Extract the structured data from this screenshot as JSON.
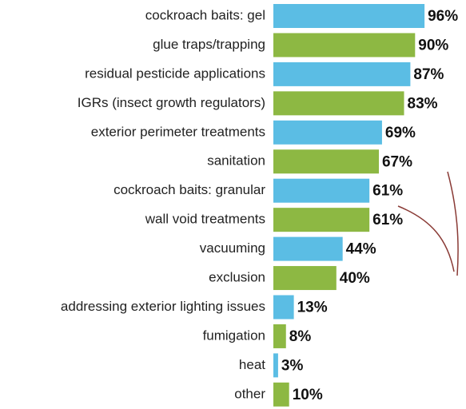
{
  "chart_data": {
    "type": "bar",
    "orientation": "horizontal",
    "categories": [
      "cockroach baits: gel",
      "glue traps/trapping",
      "residual pesticide applications",
      "IGRs (insect growth regulators)",
      "exterior perimeter treatments",
      "sanitation",
      "cockroach baits: granular",
      "wall void treatments",
      "vacuuming",
      "exclusion",
      "addressing exterior lighting issues",
      "fumigation",
      "heat",
      "other"
    ],
    "values": [
      96,
      90,
      87,
      83,
      69,
      67,
      61,
      61,
      44,
      40,
      13,
      8,
      3,
      10
    ],
    "value_labels": [
      "96%",
      "90%",
      "87%",
      "83%",
      "69%",
      "67%",
      "61%",
      "61%",
      "44%",
      "40%",
      "13%",
      "8%",
      "3%",
      "10%"
    ],
    "colors": [
      "#5bbde4",
      "#8db843",
      "#5bbde4",
      "#8db843",
      "#5bbde4",
      "#8db843",
      "#5bbde4",
      "#8db843",
      "#5bbde4",
      "#8db843",
      "#5bbde4",
      "#8db843",
      "#5bbde4",
      "#8db843"
    ]
  }
}
